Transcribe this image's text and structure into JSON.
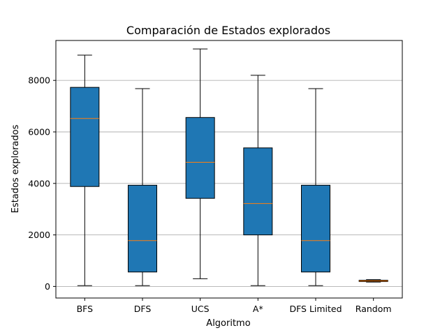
{
  "chart_data": {
    "type": "boxplot",
    "title": "Comparación de Estados explorados",
    "xlabel": "Algoritmo",
    "ylabel": "Estados explorados",
    "ylim": [
      -450,
      9550
    ],
    "yticks": [
      0,
      2000,
      4000,
      6000,
      8000
    ],
    "grid": "y",
    "colors": {
      "box_fill": "#1f77b4",
      "median": "#ff7f0e",
      "grid": "#b0b0b0"
    },
    "categories": [
      "BFS",
      "DFS",
      "UCS",
      "A*",
      "DFS Limited",
      "Random"
    ],
    "boxes": [
      {
        "name": "BFS",
        "min": 30,
        "q1": 3880,
        "median": 6520,
        "q3": 7730,
        "max": 8980
      },
      {
        "name": "DFS",
        "min": 30,
        "q1": 560,
        "median": 1780,
        "q3": 3930,
        "max": 7680
      },
      {
        "name": "UCS",
        "min": 300,
        "q1": 3420,
        "median": 4820,
        "q3": 6560,
        "max": 9220
      },
      {
        "name": "A*",
        "min": 30,
        "q1": 2000,
        "median": 3220,
        "q3": 5380,
        "max": 8200
      },
      {
        "name": "DFS Limited",
        "min": 30,
        "q1": 560,
        "median": 1780,
        "q3": 3930,
        "max": 7680
      },
      {
        "name": "Random",
        "min": 170,
        "q1": 190,
        "median": 215,
        "q3": 240,
        "max": 260
      }
    ]
  }
}
